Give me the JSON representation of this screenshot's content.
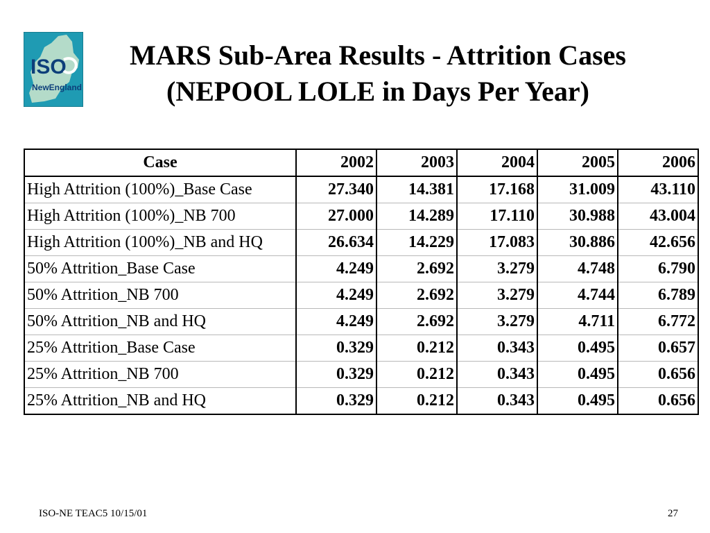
{
  "logo": {
    "line1": "ISO",
    "line2": "NewEngland",
    "colors": {
      "background": "#1f9bb3",
      "map": "#cfe6cc",
      "accent": "#0d3f7a"
    }
  },
  "title": {
    "line1": "MARS Sub-Area Results - Attrition Cases",
    "line2": "(NEPOOL LOLE in Days Per Year)"
  },
  "table": {
    "headers": [
      "Case",
      "2002",
      "2003",
      "2004",
      "2005",
      "2006"
    ],
    "rows": [
      [
        "High Attrition (100%)_Base Case",
        "27.340",
        "14.381",
        "17.168",
        "31.009",
        "43.110"
      ],
      [
        "High Attrition (100%)_NB 700",
        "27.000",
        "14.289",
        "17.110",
        "30.988",
        "43.004"
      ],
      [
        "High Attrition (100%)_NB and HQ",
        "26.634",
        "14.229",
        "17.083",
        "30.886",
        "42.656"
      ],
      [
        "50% Attrition_Base Case",
        "4.249",
        "2.692",
        "3.279",
        "4.748",
        "6.790"
      ],
      [
        "50% Attrition_NB 700",
        "4.249",
        "2.692",
        "3.279",
        "4.744",
        "6.789"
      ],
      [
        "50% Attrition_NB and HQ",
        "4.249",
        "2.692",
        "3.279",
        "4.711",
        "6.772"
      ],
      [
        "25% Attrition_Base Case",
        "0.329",
        "0.212",
        "0.343",
        "0.495",
        "0.657"
      ],
      [
        "25% Attrition_NB 700",
        "0.329",
        "0.212",
        "0.343",
        "0.495",
        "0.656"
      ],
      [
        "25% Attrition_NB and HQ",
        "0.329",
        "0.212",
        "0.343",
        "0.495",
        "0.656"
      ]
    ]
  },
  "footer": {
    "left": "ISO-NE TEAC5 10/15/01",
    "page": "27"
  }
}
